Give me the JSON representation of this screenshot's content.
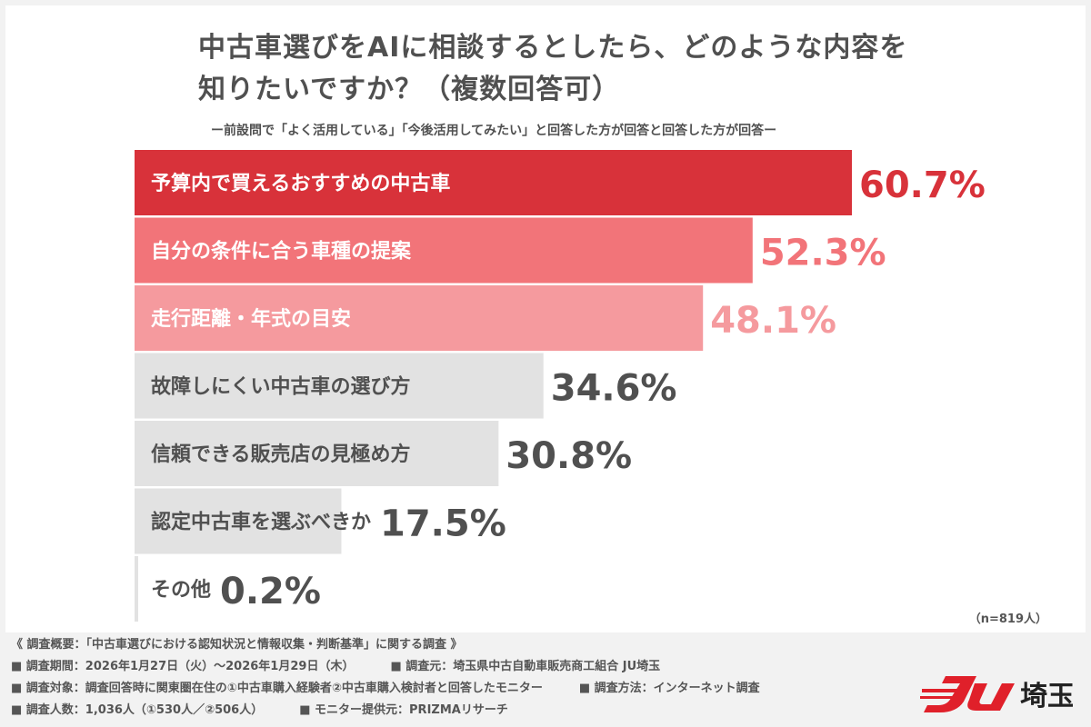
{
  "chart_data": {
    "type": "bar",
    "orientation": "horizontal",
    "title": "中古車選びをAIに相談するとしたら、どのような内容を知りたいですか？（複数回答可）",
    "subtitle": "ー前設問で「よく活用している」「今後活用してみたい」と回答した方が回答と回答した方が回答ー",
    "categories": [
      "予算内で買えるおすすめの中古車",
      "自分の条件に合う車種の提案",
      "走行距離・年式の目安",
      "故障しにくい中古車の選び方",
      "信頼できる販売店の見極め方",
      "認定中古車を選ぶべきか",
      "その他"
    ],
    "values": [
      60.7,
      52.3,
      48.1,
      34.6,
      30.8,
      17.5,
      0.2
    ],
    "value_labels": [
      "60.7%",
      "52.3%",
      "48.1%",
      "34.6%",
      "30.8%",
      "17.5%",
      "0.2%"
    ],
    "unit": "%",
    "bar_colors": [
      "#d8323a",
      "#f27479",
      "#f59a9e",
      "#e2e2e2",
      "#e2e2e2",
      "#e2e2e2",
      "#e2e2e2"
    ],
    "label_colors": [
      "#ffffff",
      "#ffffff",
      "#ffffff",
      "#505050",
      "#505050",
      "#505050",
      "#505050"
    ],
    "value_colors": [
      "#d8323a",
      "#f27479",
      "#f59a9e",
      "#505050",
      "#505050",
      "#505050",
      "#505050"
    ],
    "grid": false,
    "legend": "none",
    "note": "（n=819人）"
  },
  "footer": {
    "line1": "《 調査概要：「中古車選びにおける認知状況と情報収集・判断基準」に関する調査 》",
    "period": "■ 調査期間：2026年1月27日（火）〜2026年1月29日（木）",
    "origin": "■ 調査元：埼玉県中古自動車販売商工組合 JU埼玉",
    "target": "■ 調査対象：調査回答時に関東圏在住の①中古車購入経験者②中古車購入検討者と回答したモニター",
    "method": "■ 調査方法：インターネット調査",
    "count": "■ 調査人数：1,036人（①530人／②506人）",
    "provider": "■ モニター提供元：PRIZMAリサーチ"
  },
  "logo": {
    "text": "埼玉",
    "color": "#e0202a"
  }
}
